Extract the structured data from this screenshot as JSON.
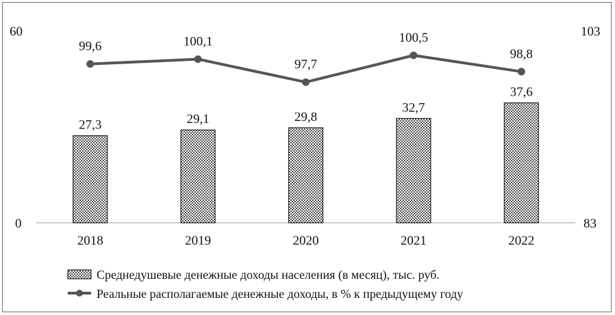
{
  "chart_data": {
    "type": "bar+line",
    "categories": [
      "2018",
      "2019",
      "2020",
      "2021",
      "2022"
    ],
    "series": [
      {
        "name": "Среднедушевые денежные доходы населения (в месяц), тыс. руб.",
        "type": "bar",
        "axis": "left",
        "values": [
          27.3,
          29.1,
          29.8,
          32.7,
          37.6
        ],
        "labels": [
          "27,3",
          "29,1",
          "29,8",
          "32,7",
          "37,6"
        ]
      },
      {
        "name": "Реальные располагаемые денежные доходы, в % к предыдущему году",
        "type": "line",
        "axis": "right",
        "values": [
          99.6,
          100.1,
          97.7,
          100.5,
          98.8
        ],
        "labels": [
          "99,6",
          "100,1",
          "97,7",
          "100,5",
          "98,8"
        ]
      }
    ],
    "y_left": {
      "min": 0,
      "max": 60,
      "ticks": [
        "0",
        "60"
      ]
    },
    "y_right": {
      "min": 83,
      "max": 103,
      "ticks": [
        "83",
        "103"
      ]
    },
    "legend_position": "bottom",
    "colors": {
      "bar_pattern": "#444444",
      "line": "#555555"
    }
  }
}
